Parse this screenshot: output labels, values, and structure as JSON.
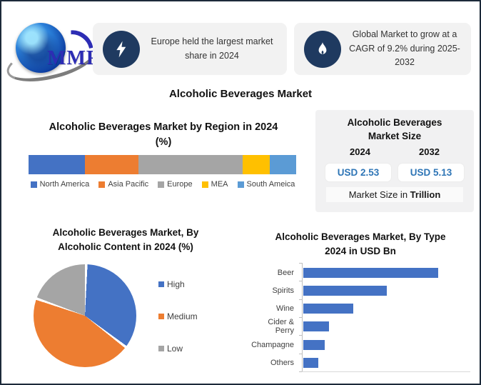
{
  "logo": {
    "text": "MMR"
  },
  "callouts": [
    {
      "icon": "lightning-icon",
      "text": "Europe held the largest market share in 2024"
    },
    {
      "icon": "flame-icon",
      "text": "Global Market to grow at a CAGR of 9.2% during 2025-2032"
    }
  ],
  "main_title": "Alcoholic Beverages Market",
  "market_size": {
    "title_lines": [
      "Alcoholic Beverages",
      "Market Size"
    ],
    "years": [
      "2024",
      "2032"
    ],
    "values": [
      "USD 2.53",
      "USD 5.13"
    ],
    "footer_prefix": "Market Size in ",
    "footer_bold": "Trillion"
  },
  "colors": {
    "icon_circle": "#1f3a60",
    "callout_bg": "#f2f2f2",
    "panel_bg": "#f1f1f2",
    "value_text": "#2e75b6",
    "border": "#1c2a3a"
  },
  "chart_data": [
    {
      "id": "region",
      "type": "bar",
      "subtype": "stacked-horizontal",
      "title_lines": [
        "Alcoholic Beverages Market by Region in 2024",
        "(%)"
      ],
      "categories": [
        "North America",
        "Asia Pacific",
        "Europe",
        "MEA",
        "South Ameica"
      ],
      "values": [
        21,
        20,
        39,
        10,
        10
      ],
      "colors": [
        "#4472C4",
        "#ED7D31",
        "#A5A5A5",
        "#FFC000",
        "#5B9BD5"
      ],
      "legend_position": "bottom",
      "axis_labels": "none"
    },
    {
      "id": "alcoholic-content",
      "type": "pie",
      "title_lines": [
        "Alcoholic Beverages Market, By",
        "Alcoholic Content in 2024 (%)"
      ],
      "categories": [
        "High",
        "Medium",
        "Low"
      ],
      "values": [
        35,
        45,
        20
      ],
      "colors": [
        "#4472C4",
        "#ED7D31",
        "#A5A5A5"
      ],
      "legend_position": "right",
      "start_angle": 0
    },
    {
      "id": "by-type",
      "type": "bar",
      "subtype": "horizontal",
      "title_lines": [
        "Alcoholic Beverages Market, By Type",
        "2024 in USD Bn"
      ],
      "categories": [
        "Beer",
        "Spirits",
        "Wine",
        "Cider & Perry",
        "Champagne",
        "Others"
      ],
      "values": [
        100,
        62,
        37,
        19,
        16,
        11
      ],
      "bar_color": "#4472C4",
      "xlim": [
        0,
        107
      ],
      "axis_labels": "categories-only"
    }
  ]
}
